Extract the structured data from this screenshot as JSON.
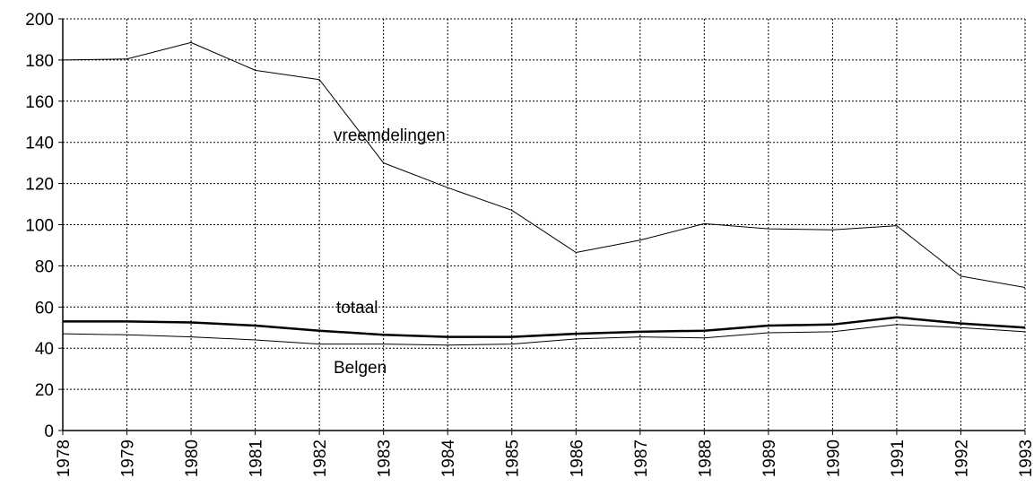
{
  "chart_data": {
    "type": "line",
    "x": [
      1978,
      1979,
      1980,
      1981,
      1982,
      1983,
      1984,
      1985,
      1986,
      1987,
      1988,
      1989,
      1990,
      1991,
      1992,
      1993
    ],
    "series": [
      {
        "name": "vreemdelingen",
        "color": "#000000",
        "line_width": 1,
        "values": [
          180,
          180.5,
          188.5,
          175,
          170.5,
          130,
          118,
          107,
          86.5,
          92.5,
          100.5,
          98,
          97.5,
          99.5,
          75,
          69.5
        ]
      },
      {
        "name": "totaal",
        "color": "#000000",
        "line_width": 2.5,
        "values": [
          53,
          53,
          52.5,
          51,
          48.5,
          46.5,
          45.5,
          45.5,
          47,
          48,
          48.5,
          51,
          51.5,
          55,
          52,
          50
        ]
      },
      {
        "name": "Belgen",
        "color": "#000000",
        "line_width": 1,
        "values": [
          47,
          46.5,
          45.5,
          44,
          42,
          42,
          41.5,
          42,
          44.5,
          45.5,
          45,
          47.5,
          48,
          51.5,
          50,
          48
        ]
      }
    ],
    "xlim": [
      1978,
      1993
    ],
    "xticks": [
      1978,
      1979,
      1980,
      1981,
      1982,
      1983,
      1984,
      1985,
      1986,
      1987,
      1988,
      1989,
      1990,
      1991,
      1992,
      1993
    ],
    "ylim": [
      0,
      200
    ],
    "yticks": [
      0,
      20,
      40,
      60,
      80,
      100,
      120,
      140,
      160,
      180,
      200
    ],
    "grid": true
  }
}
